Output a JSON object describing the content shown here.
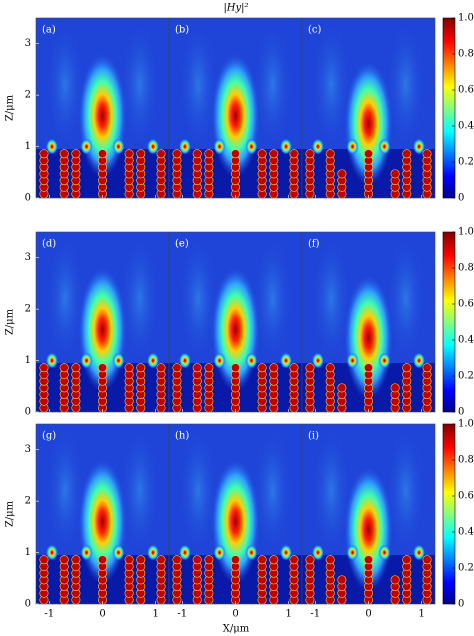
{
  "chart_data": {
    "type": "heatmap",
    "title": "|Hy|²",
    "x_label": "X/μm",
    "y_label": "Z/μm",
    "panels": [
      "(a)",
      "(b)",
      "(c)",
      "(d)",
      "(e)",
      "(f)",
      "(g)",
      "(h)",
      "(i)"
    ],
    "xlim": [
      -1.25,
      1.25
    ],
    "xticks": [
      -1,
      0,
      1
    ],
    "ylim": [
      0,
      3.5
    ],
    "yticks": [
      0,
      1,
      2,
      3
    ],
    "clim": [
      0,
      1
    ],
    "cticks": [
      0,
      {
        "value": 0.2,
        "label": "0.2"
      },
      {
        "value": 0.4,
        "label": "0.4"
      },
      {
        "value": 0.6,
        "label": "0.6"
      },
      {
        "value": 0.8,
        "label": "0.8"
      },
      {
        "value": 1,
        "label": "1.0"
      }
    ]
  }
}
